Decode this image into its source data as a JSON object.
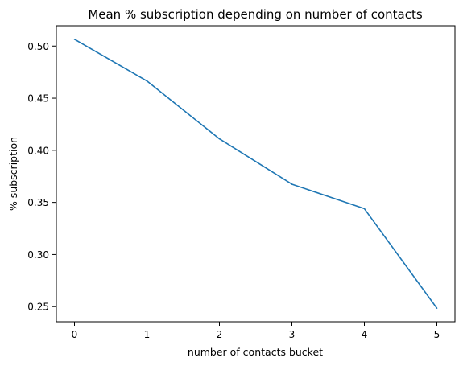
{
  "chart_data": {
    "type": "line",
    "title": "Mean % subscription depending on number of contacts",
    "xlabel": "number of contacts bucket",
    "ylabel": "% subscription",
    "x": [
      0,
      1,
      2,
      3,
      4,
      5
    ],
    "series": [
      {
        "values": [
          0.5065,
          0.4665,
          0.411,
          0.3675,
          0.344,
          0.2485
        ]
      }
    ],
    "xlim": [
      -0.25,
      5.25
    ],
    "ylim": [
      0.2355,
      0.5195
    ],
    "xticks": [
      "0",
      "1",
      "2",
      "3",
      "4",
      "5"
    ],
    "yticks": [
      "0.25",
      "0.30",
      "0.35",
      "0.40",
      "0.45",
      "0.50"
    ],
    "grid": false,
    "line_color": "#1f77b4"
  }
}
